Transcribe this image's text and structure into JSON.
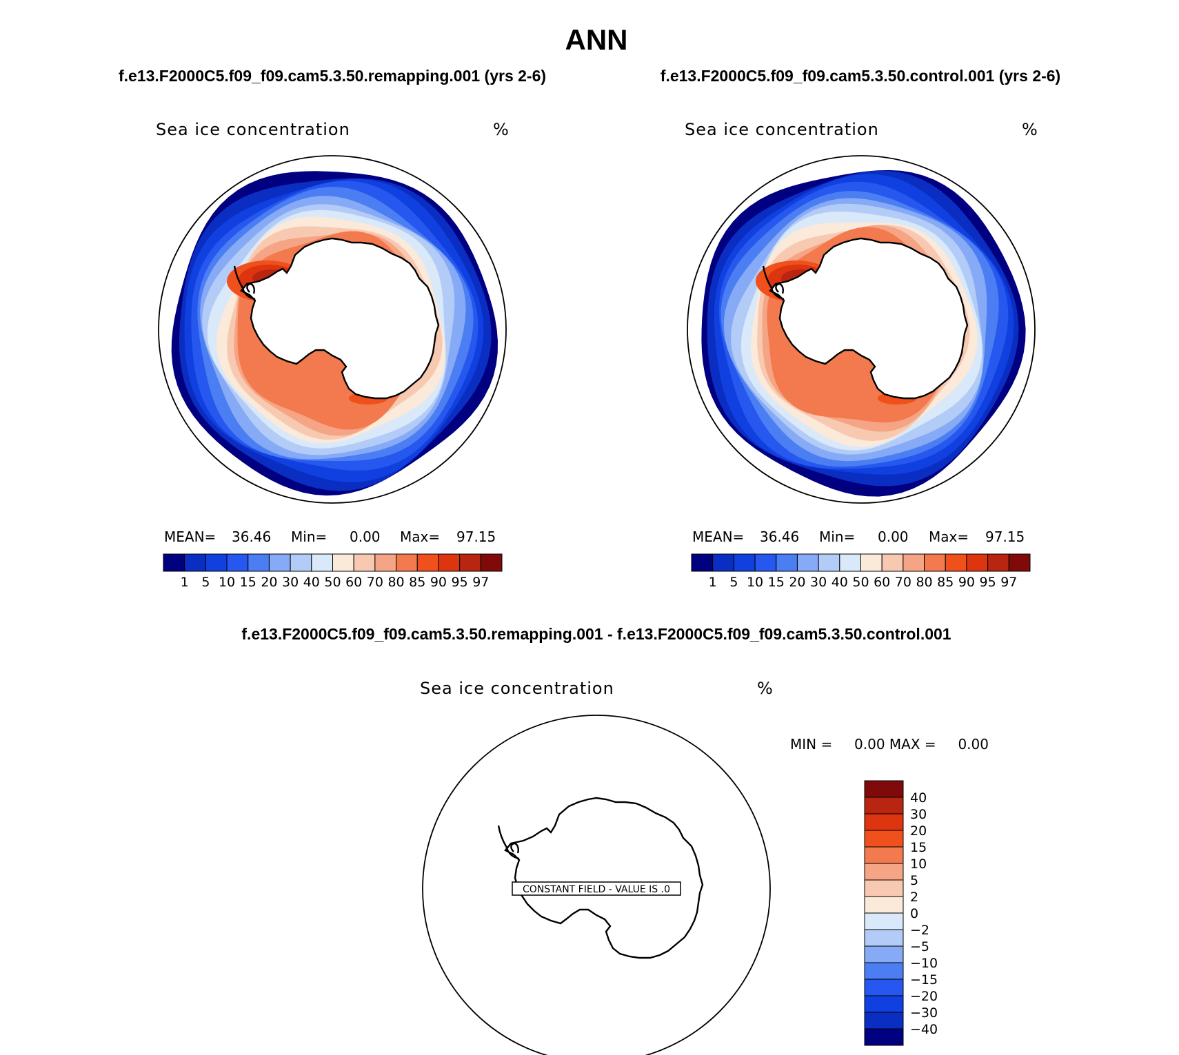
{
  "figure": {
    "title": "ANN",
    "colors": {
      "seq": [
        "#000080",
        "#0a2ec2",
        "#1040df",
        "#2657ee",
        "#4a7ef2",
        "#86aaf5",
        "#b3cbf7",
        "#d9e9f9",
        "#fbe9da",
        "#f8c9b1",
        "#f5a585",
        "#f27a4e",
        "#f0501c",
        "#dd3510",
        "#b82510",
        "#800a0a"
      ],
      "diff": [
        "#800a0a",
        "#b82510",
        "#dd3510",
        "#f0501c",
        "#f27a4e",
        "#f5a585",
        "#f8c9b1",
        "#fbe9da",
        "#d9e9f9",
        "#b3cbf7",
        "#86aaf5",
        "#4a7ef2",
        "#2657ee",
        "#1040df",
        "#0a2ec2",
        "#000080"
      ]
    }
  },
  "panels": [
    {
      "id": "remapping",
      "case_title": "f.e13.F2000C5.f09_f09.cam5.3.50.remapping.001 (yrs 2-6)",
      "variable": "Sea ice concentration",
      "units": "%",
      "stats": {
        "mean_label": "MEAN=",
        "mean_value": "36.46",
        "min_label": "Min=",
        "min_value": "0.00",
        "max_label": "Max=",
        "max_value": "97.15"
      },
      "colorbar_labels": [
        "1",
        "5",
        "10",
        "15",
        "20",
        "30",
        "40",
        "50",
        "60",
        "70",
        "80",
        "85",
        "90",
        "95",
        "97"
      ]
    },
    {
      "id": "control",
      "case_title": "f.e13.F2000C5.f09_f09.cam5.3.50.control.001 (yrs 2-6)",
      "variable": "Sea ice concentration",
      "units": "%",
      "stats": {
        "mean_label": "MEAN=",
        "mean_value": "36.46",
        "min_label": "Min=",
        "min_value": "0.00",
        "max_label": "Max=",
        "max_value": "97.15"
      },
      "colorbar_labels": [
        "1",
        "5",
        "10",
        "15",
        "20",
        "30",
        "40",
        "50",
        "60",
        "70",
        "80",
        "85",
        "90",
        "95",
        "97"
      ]
    }
  ],
  "difference": {
    "case_title": "f.e13.F2000C5.f09_f09.cam5.3.50.remapping.001 - f.e13.F2000C5.f09_f09.cam5.3.50.control.001",
    "variable": "Sea ice concentration",
    "units": "%",
    "minmax": "MIN =     0.00 MAX =     0.00",
    "constant_field_note": "CONSTANT FIELD - VALUE IS .0",
    "colorbar_labels": [
      "40",
      "30",
      "20",
      "15",
      "10",
      "5",
      "2",
      "0",
      "−2",
      "−5",
      "−10",
      "−15",
      "−20",
      "−30",
      "−40"
    ]
  }
}
